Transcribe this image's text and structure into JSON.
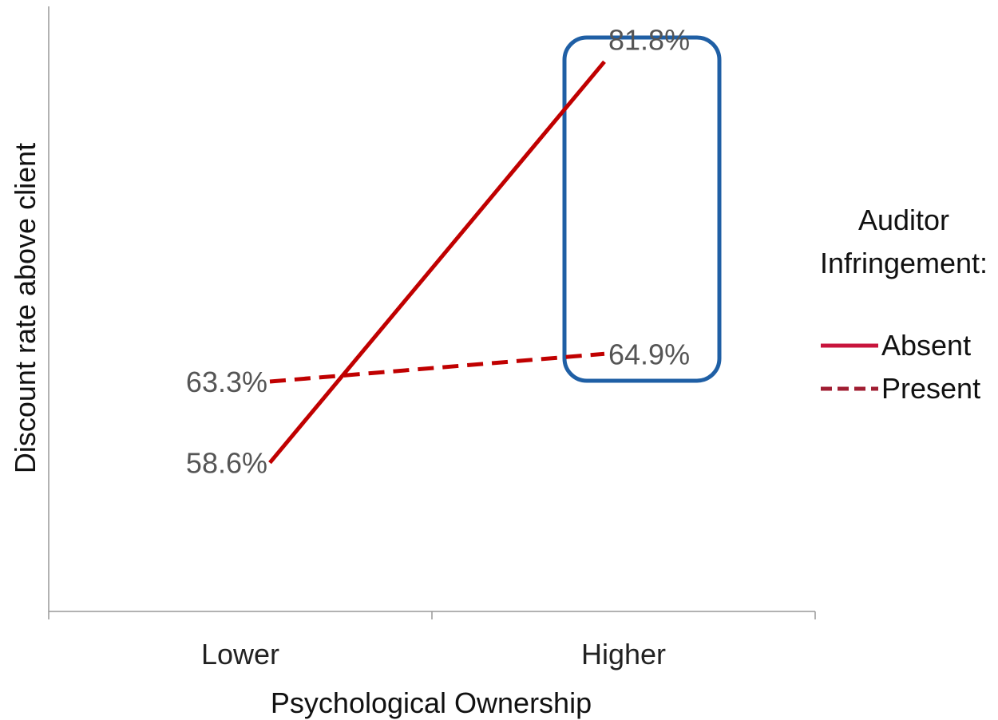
{
  "chart_data": {
    "type": "line",
    "categories": [
      "Lower",
      "Higher"
    ],
    "xlabel": "Psychological Ownership",
    "ylabel": "Discount rate above client",
    "ylim": [
      50,
      85
    ],
    "grid": false,
    "legend": {
      "title_line1": "Auditor",
      "title_line2": "Infringement:",
      "placement": "right"
    },
    "series": [
      {
        "name": "Absent",
        "values": [
          58.6,
          81.8
        ],
        "labels": [
          "58.6%",
          "81.8%"
        ],
        "style": "solid",
        "color": "#c00000"
      },
      {
        "name": "Present",
        "values": [
          63.3,
          64.9
        ],
        "labels": [
          "63.3%",
          "64.9%"
        ],
        "style": "dashed",
        "color": "#c00000"
      }
    ],
    "legend_colors": {
      "Absent": "#c8143c",
      "Present": "#a01e32"
    },
    "highlight": {
      "category": "Higher",
      "color": "#1f5fa5"
    },
    "axis_color": "#999999"
  }
}
